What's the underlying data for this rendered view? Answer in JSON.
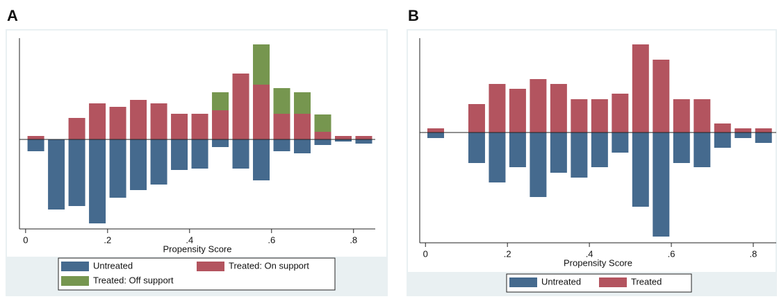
{
  "chart_data": [
    {
      "type": "bar",
      "panel": "A",
      "x_label": "Propensity Score",
      "x": [
        0.025,
        0.075,
        0.125,
        0.175,
        0.225,
        0.275,
        0.325,
        0.375,
        0.425,
        0.475,
        0.525,
        0.575,
        0.625,
        0.675,
        0.725,
        0.775,
        0.825
      ],
      "series": [
        {
          "name": "Untreated",
          "color": "#456a8e",
          "values": [
            -17,
            -101,
            -96,
            -121,
            -84,
            -73,
            -65,
            -44,
            -42,
            -11,
            -42,
            -59,
            -17,
            -20,
            -8,
            -3,
            -6
          ]
        },
        {
          "name": "Treated: On support",
          "color": "#b3545f",
          "values": [
            5,
            0,
            31,
            52,
            47,
            57,
            52,
            37,
            37,
            42,
            95,
            79,
            37,
            37,
            11,
            5,
            5
          ]
        },
        {
          "name": "Treated: Off support",
          "color": "#76964f",
          "values": [
            0,
            0,
            0,
            0,
            0,
            0,
            0,
            0,
            0,
            26,
            0,
            58,
            37,
            31,
            25,
            0,
            0
          ]
        }
      ],
      "xlim": [
        -0.015,
        0.853
      ],
      "ylim": [
        -129,
        146
      ],
      "xticks": [
        0,
        {
          "value": 0.2,
          "label": ".2"
        },
        {
          "value": 0.4,
          "label": ".4"
        },
        {
          "value": 0.6,
          "label": ".6"
        },
        {
          "value": 0.8,
          "label": ".8"
        }
      ],
      "legend_position": "bottom",
      "legend_columns": 2
    },
    {
      "type": "bar",
      "panel": "B",
      "x_label": "Propensity Score",
      "x": [
        0.025,
        0.075,
        0.125,
        0.175,
        0.225,
        0.275,
        0.325,
        0.375,
        0.425,
        0.475,
        0.525,
        0.575,
        0.625,
        0.675,
        0.725,
        0.775,
        0.825
      ],
      "series": [
        {
          "name": "Untreated",
          "color": "#456a8e",
          "values": [
            -8,
            0,
            -44,
            -72,
            -50,
            -93,
            -58,
            -65,
            -50,
            -29,
            -107,
            -150,
            -44,
            -50,
            -22,
            -8,
            -15
          ]
        },
        {
          "name": "Treated",
          "color": "#b3545f",
          "values": [
            6,
            0,
            41,
            70,
            63,
            77,
            70,
            48,
            48,
            56,
            127,
            105,
            48,
            48,
            13,
            6,
            6
          ]
        }
      ],
      "xlim": [
        -0.014,
        0.856
      ],
      "ylim": [
        -159,
        136
      ],
      "xticks": [
        0,
        {
          "value": 0.2,
          "label": ".2"
        },
        {
          "value": 0.4,
          "label": ".4"
        },
        {
          "value": 0.6,
          "label": ".6"
        },
        {
          "value": 0.8,
          "label": ".8"
        }
      ],
      "legend_position": "bottom",
      "legend_columns": 2
    }
  ]
}
